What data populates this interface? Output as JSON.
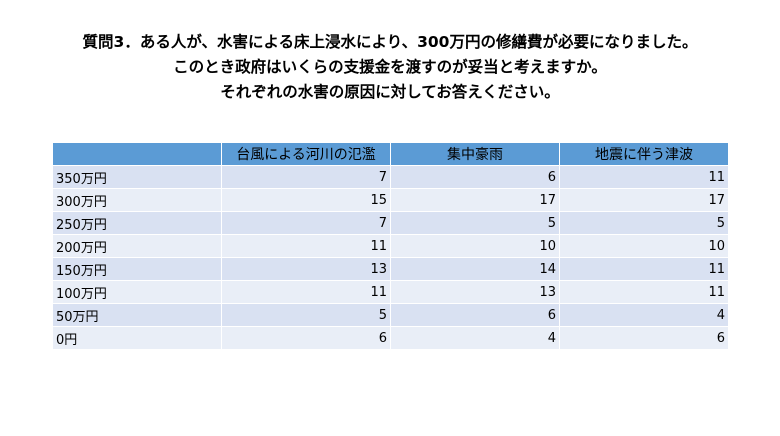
{
  "header": {
    "title_lines": [
      "質問3．ある人が、水害による床上浸水により、300万円の修繕費が必要になりました。",
      "このとき政府はいくらの支援金を渡すのが妥当と考えますか。",
      "それぞれの水害の原因に対してお答えください。"
    ]
  },
  "table": {
    "columns": [
      "",
      "台風による河川の氾濫",
      "集中豪雨",
      "地震に伴う津波"
    ],
    "rows": [
      [
        "350万円",
        7,
        6,
        11
      ],
      [
        "300万円",
        15,
        17,
        17
      ],
      [
        "250万円",
        7,
        5,
        5
      ],
      [
        "200万円",
        11,
        10,
        10
      ],
      [
        "150万円",
        13,
        14,
        11
      ],
      [
        "100万円",
        11,
        13,
        11
      ],
      [
        "50万円",
        5,
        6,
        4
      ],
      [
        "0円",
        6,
        4,
        6
      ]
    ]
  }
}
